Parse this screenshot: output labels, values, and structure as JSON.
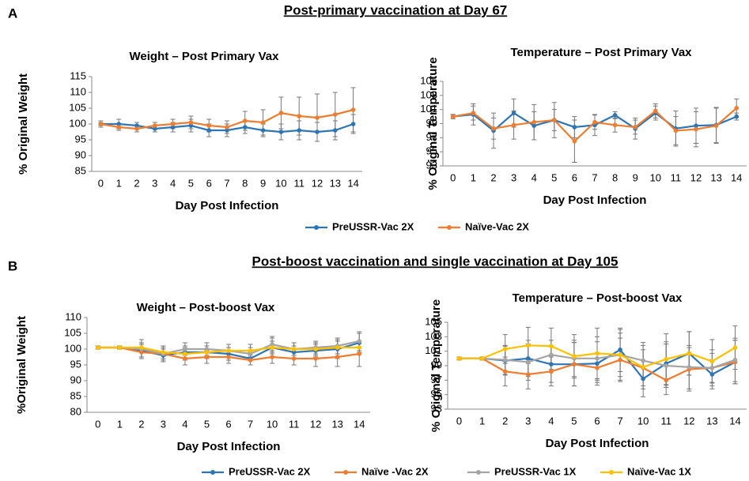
{
  "panel_a": {
    "letter": "A",
    "title": "Post-primary vaccination at Day 67"
  },
  "panel_b": {
    "letter": "B",
    "title": "Post-boost vaccination and single vaccination at Day 105"
  },
  "chart_data": [
    {
      "type": "line",
      "title": "Weight – Post Primary Vax",
      "x_label": "Day Post Infection",
      "y_label": "% Original Weight",
      "categories": [
        "0",
        "1",
        "2",
        "3",
        "4",
        "5",
        "6",
        "7",
        "8",
        "9",
        "10",
        "11",
        "12",
        "13",
        "14"
      ],
      "ylim": [
        85,
        115
      ],
      "yticks": [
        85,
        90,
        95,
        100,
        105,
        110,
        115
      ],
      "series": [
        {
          "name": "PreUSSR-Vac 2X",
          "color": "#2e75b6",
          "values": [
            100,
            100,
            99.5,
            98.5,
            99,
            99.5,
            98,
            98,
            99,
            98,
            97.5,
            98,
            97.5,
            98,
            100
          ],
          "errors": [
            1,
            1.5,
            1,
            1,
            1.5,
            2,
            2,
            2,
            2,
            2,
            2.5,
            3,
            3,
            3,
            3
          ]
        },
        {
          "name": "Naïve-Vac 2X",
          "color": "#ed7d31",
          "values": [
            100,
            99,
            98.5,
            99.5,
            100,
            100.5,
            99.5,
            99,
            101,
            100.5,
            103.5,
            102.5,
            102,
            103,
            104.5
          ],
          "errors": [
            0.5,
            1,
            1,
            1,
            1.5,
            2,
            2,
            2,
            3,
            4,
            5,
            6,
            7.5,
            7,
            7
          ]
        }
      ]
    },
    {
      "type": "line",
      "title": "Temperature – Post Primary Vax",
      "x_label": "Day Post Infection",
      "y_label": "% Original Temperature",
      "categories": [
        "0",
        "1",
        "2",
        "3",
        "4",
        "5",
        "6",
        "7",
        "8",
        "9",
        "10",
        "11",
        "12",
        "13",
        "14"
      ],
      "ylim": [
        93,
        105
      ],
      "yticks": [
        93,
        95,
        97,
        99,
        101,
        103,
        105
      ],
      "series": [
        {
          "name": "PreUSSR-Vac 2X",
          "color": "#2e75b6",
          "values": [
            100,
            100.3,
            98,
            100.5,
            98.7,
            99.5,
            98.5,
            98.8,
            100.2,
            98.3,
            100.5,
            98.3,
            98.7,
            98.8,
            100
          ],
          "errors": [
            0.3,
            1.5,
            2.5,
            2,
            2,
            2.5,
            1.5,
            1.5,
            0.5,
            1.5,
            1,
            2.5,
            2.5,
            2.5,
            0.5
          ]
        },
        {
          "name": "Naïve-Vac 2X",
          "color": "#ed7d31",
          "values": [
            100,
            100.5,
            98.3,
            98.8,
            99.2,
            99.5,
            96.5,
            99.2,
            98.8,
            98.5,
            100.8,
            98,
            98.2,
            98.7,
            101.2
          ],
          "errors": [
            0.3,
            1,
            1.5,
            2,
            2.5,
            1.5,
            3,
            1,
            1,
            1,
            1,
            2,
            2.5,
            2.5,
            1.3
          ]
        }
      ]
    },
    {
      "type": "line",
      "title": "Weight – Post-boost Vax",
      "x_label": "Day Post Infection",
      "y_label": "%Original Weight",
      "categories": [
        "0",
        "1",
        "2",
        "3",
        "4",
        "5",
        "6",
        "7",
        "10",
        "11",
        "12",
        "13",
        "14"
      ],
      "ylim": [
        80,
        110
      ],
      "yticks": [
        80,
        85,
        90,
        95,
        100,
        105,
        110
      ],
      "series": [
        {
          "name": "PreUSSR-Vac 2X",
          "color": "#2e75b6",
          "values": [
            100.5,
            100.5,
            99.5,
            98,
            99,
            99,
            98.5,
            97,
            100.5,
            99,
            99.5,
            100,
            102
          ],
          "errors": [
            0.5,
            0.5,
            2,
            2,
            2,
            2,
            2,
            2,
            3,
            2,
            2,
            3,
            3
          ]
        },
        {
          "name": "Naïve -Vac 2X",
          "color": "#ed7d31",
          "values": [
            100.5,
            100.5,
            99,
            98.5,
            97,
            97.5,
            97.5,
            96.5,
            97.5,
            97,
            97,
            97.5,
            98.5
          ],
          "errors": [
            0.5,
            0.5,
            1.5,
            2,
            2,
            2,
            2,
            1.5,
            2,
            2,
            2.5,
            3,
            4
          ]
        },
        {
          "name": "PreUSSR-Vac 1X",
          "color": "#a5a5a5",
          "values": [
            100.5,
            100.5,
            100,
            98.5,
            100,
            100,
            99.5,
            98.5,
            101.5,
            100,
            100.5,
            101,
            102.5
          ],
          "errors": [
            0.5,
            0.5,
            3,
            2.5,
            2,
            2,
            2,
            2,
            2.5,
            2,
            2,
            2.5,
            3
          ]
        },
        {
          "name": "Naïve-Vac 1X",
          "color": "#ffc000",
          "values": [
            100.5,
            100.5,
            100.5,
            99,
            98.5,
            99,
            99.5,
            99.5,
            100.5,
            100,
            100,
            100.5,
            100.5
          ],
          "errors": [
            0.5,
            0.5,
            1.5,
            2,
            2,
            2,
            2,
            2,
            2,
            2,
            2,
            2,
            2
          ]
        }
      ]
    },
    {
      "type": "line",
      "title": "Temperature – Post-boost Vax",
      "x_label": "Day Post Infection",
      "y_label": "% Original Temperature",
      "categories": [
        "0",
        "1",
        "2",
        "3",
        "4",
        "5",
        "6",
        "7",
        "10",
        "11",
        "12",
        "13",
        "14"
      ],
      "ylim": [
        93,
        105
      ],
      "yticks": [
        93,
        95,
        97,
        99,
        101,
        103,
        105
      ],
      "series": [
        {
          "name": "PreUSSR-Vac 2X",
          "color": "#2e75b6",
          "values": [
            100,
            100,
            99.7,
            100,
            99.2,
            99.2,
            99.3,
            101.2,
            97.2,
            99.3,
            100.7,
            97.8,
            99.5
          ],
          "errors": [
            0.2,
            0.2,
            2,
            2.5,
            2.5,
            3,
            3,
            3,
            2.5,
            3,
            3,
            2,
            3
          ]
        },
        {
          "name": "Naïve -Vac 2X",
          "color": "#ed7d31",
          "values": [
            100,
            100,
            98.2,
            97.8,
            98.2,
            99.2,
            98.7,
            99.8,
            98.7,
            97,
            98.5,
            98.7,
            99.5
          ],
          "errors": [
            0.2,
            0.2,
            2,
            2,
            2,
            3,
            2,
            3,
            2.5,
            2,
            3,
            2,
            3
          ]
        },
        {
          "name": "PreUSSR-Vac 1X",
          "color": "#a5a5a5",
          "values": [
            100,
            100,
            99.8,
            99.5,
            100.5,
            100,
            100,
            100.5,
            99.7,
            99,
            98.8,
            98.7,
            99.8
          ],
          "errors": [
            0.2,
            0.2,
            2,
            2.5,
            2,
            2.5,
            3,
            3,
            2.5,
            3,
            3,
            2.5,
            3
          ]
        },
        {
          "name": "Naïve-Vac 1X",
          "color": "#ffc000",
          "values": [
            100,
            100,
            101.3,
            101.8,
            101.7,
            100.3,
            100.7,
            100.5,
            98.8,
            99.9,
            100.7,
            99.6,
            101.5
          ],
          "errors": [
            0.2,
            0.2,
            2,
            2.5,
            2.5,
            3,
            3.5,
            3.5,
            3,
            3.5,
            3,
            3,
            3
          ]
        }
      ]
    }
  ]
}
